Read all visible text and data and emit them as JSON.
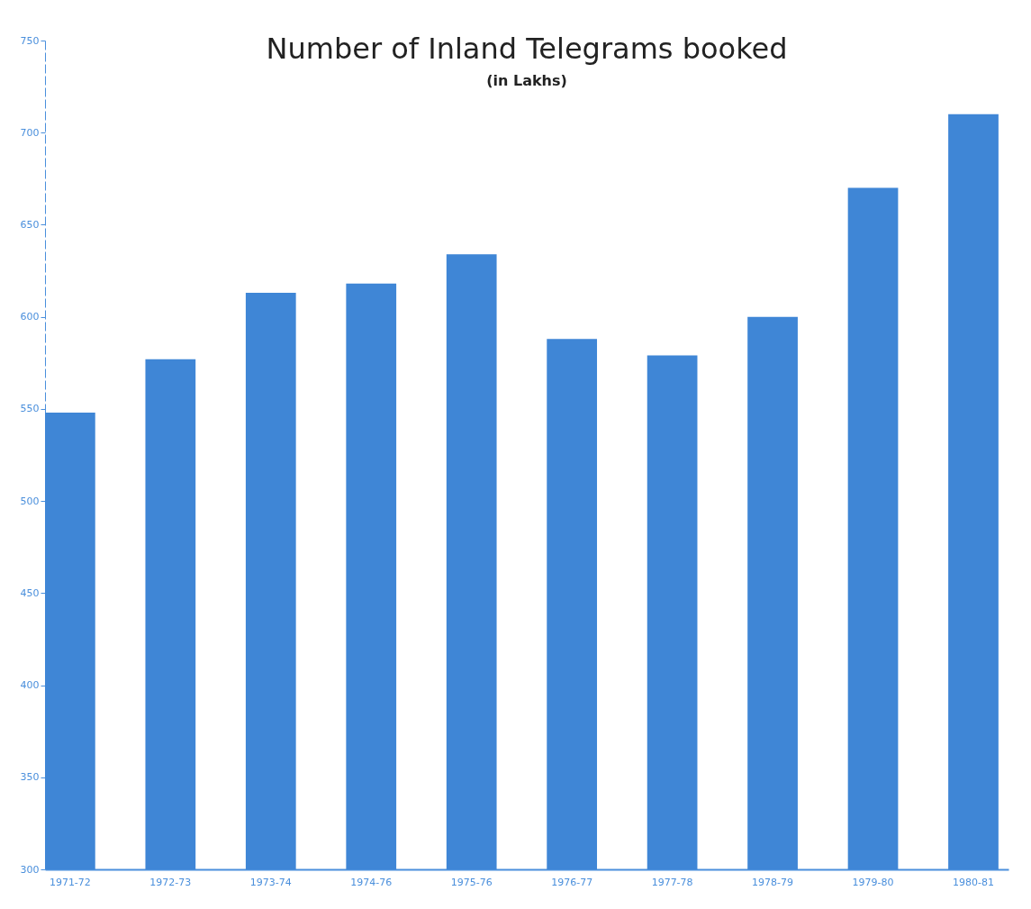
{
  "chart_data": {
    "type": "bar",
    "title": "Number of Inland Telegrams booked",
    "subtitle": "(in Lakhs)",
    "categories": [
      "1971-72",
      "1972-73",
      "1973-74",
      "1974-76",
      "1975-76",
      "1976-77",
      "1977-78",
      "1978-79",
      "1979-80",
      "1980-81"
    ],
    "values": [
      548,
      577,
      613,
      618,
      634,
      588,
      579,
      600,
      670,
      710
    ],
    "color": "#3f86d6",
    "ylim": [
      300,
      750
    ],
    "yticks": [
      300,
      350,
      400,
      450,
      500,
      550,
      600,
      650,
      700,
      750
    ],
    "grid": false
  }
}
